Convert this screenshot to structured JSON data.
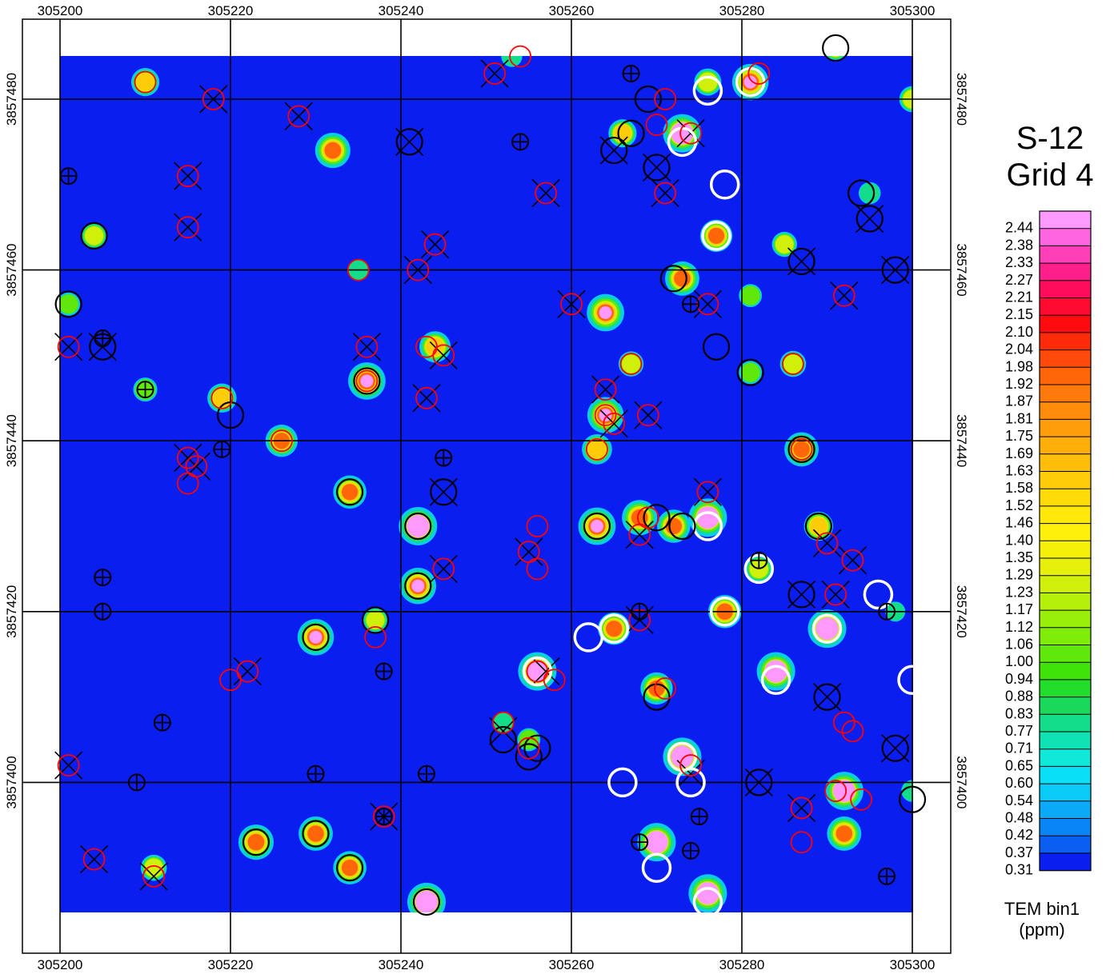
{
  "title": {
    "line1": "S-12",
    "line2": "Grid 4"
  },
  "legend": {
    "unit_line1": "TEM bin1",
    "unit_line2": "(ppm)",
    "labels": [
      "2.44",
      "2.38",
      "2.33",
      "2.27",
      "2.21",
      "2.15",
      "2.10",
      "2.04",
      "1.98",
      "1.92",
      "1.87",
      "1.81",
      "1.75",
      "1.69",
      "1.63",
      "1.58",
      "1.52",
      "1.46",
      "1.40",
      "1.35",
      "1.29",
      "1.23",
      "1.17",
      "1.12",
      "1.06",
      "1.00",
      "0.94",
      "0.88",
      "0.83",
      "0.77",
      "0.71",
      "0.65",
      "0.60",
      "0.54",
      "0.48",
      "0.42",
      "0.37",
      "0.31"
    ],
    "colors": [
      "#ff99ff",
      "#ff66e0",
      "#ff3fb8",
      "#ff1f8a",
      "#ff0c5c",
      "#ff0a2e",
      "#ff0a0f",
      "#ff2a0a",
      "#ff4a0a",
      "#ff660a",
      "#ff7a0a",
      "#ff8c0a",
      "#ff9e0a",
      "#ffae0a",
      "#ffbe0a",
      "#ffcc0a",
      "#ffdb0a",
      "#ffe80a",
      "#fff00a",
      "#f4f00a",
      "#e6f00a",
      "#cff00a",
      "#b5f00a",
      "#9aef0a",
      "#7fec0a",
      "#5fe80a",
      "#3fe30a",
      "#22dd2a",
      "#1ad85a",
      "#14dd8a",
      "#10e2b4",
      "#10e8da",
      "#0ae0f5",
      "#0acaf8",
      "#0aaaf8",
      "#0a85f5",
      "#0a5ff2",
      "#0a1ef0"
    ]
  },
  "axes": {
    "x_ticks": [
      "305200",
      "305220",
      "305240",
      "305260",
      "305280",
      "305300"
    ],
    "y_ticks": [
      "3857480",
      "3857460",
      "3857440",
      "3857420",
      "3857400"
    ],
    "xlim": [
      305196,
      305301
    ],
    "ylim": [
      3857383,
      3857484
    ]
  },
  "anomalies": [
    {
      "e": 305210,
      "n": 3857482,
      "v": 1.5
    },
    {
      "e": 305232,
      "n": 3857474,
      "v": 2.2
    },
    {
      "e": 305204,
      "n": 3857464,
      "v": 1.3
    },
    {
      "e": 305201,
      "n": 3857456,
      "v": 1.0
    },
    {
      "e": 305235,
      "n": 3857460,
      "v": 0.9
    },
    {
      "e": 305236,
      "n": 3857447,
      "v": 2.4
    },
    {
      "e": 305244,
      "n": 3857451,
      "v": 1.8
    },
    {
      "e": 305210,
      "n": 3857446,
      "v": 1.1
    },
    {
      "e": 305219,
      "n": 3857445,
      "v": 1.6
    },
    {
      "e": 305226,
      "n": 3857440,
      "v": 1.9
    },
    {
      "e": 305234,
      "n": 3857434,
      "v": 2.0
    },
    {
      "e": 305242,
      "n": 3857430,
      "v": 2.5
    },
    {
      "e": 305242,
      "n": 3857423,
      "v": 2.3
    },
    {
      "e": 305230,
      "n": 3857417,
      "v": 2.3
    },
    {
      "e": 305237,
      "n": 3857419,
      "v": 1.2
    },
    {
      "e": 305223,
      "n": 3857393,
      "v": 2.2
    },
    {
      "e": 305230,
      "n": 3857394,
      "v": 2.1
    },
    {
      "e": 305234,
      "n": 3857390,
      "v": 2.0
    },
    {
      "e": 305243,
      "n": 3857386,
      "v": 2.5
    },
    {
      "e": 305211,
      "n": 3857390,
      "v": 1.3
    },
    {
      "e": 305255,
      "n": 3857405,
      "v": 1.0
    },
    {
      "e": 305252,
      "n": 3857407,
      "v": 0.9
    },
    {
      "e": 305256,
      "n": 3857413,
      "v": 2.5
    },
    {
      "e": 305263,
      "n": 3857430,
      "v": 2.4
    },
    {
      "e": 305268,
      "n": 3857431,
      "v": 2.2
    },
    {
      "e": 305272,
      "n": 3857430,
      "v": 2.0
    },
    {
      "e": 305276,
      "n": 3857431,
      "v": 2.5
    },
    {
      "e": 305264,
      "n": 3857443,
      "v": 2.3
    },
    {
      "e": 305263,
      "n": 3857439,
      "v": 1.7
    },
    {
      "e": 305264,
      "n": 3857455,
      "v": 2.4
    },
    {
      "e": 305267,
      "n": 3857449,
      "v": 1.2
    },
    {
      "e": 305270,
      "n": 3857393,
      "v": 2.5
    },
    {
      "e": 305273,
      "n": 3857403,
      "v": 2.5
    },
    {
      "e": 305270,
      "n": 3857411,
      "v": 1.9
    },
    {
      "e": 305276,
      "n": 3857387,
      "v": 2.5
    },
    {
      "e": 305265,
      "n": 3857418,
      "v": 1.9
    },
    {
      "e": 305278,
      "n": 3857420,
      "v": 2.0
    },
    {
      "e": 305282,
      "n": 3857425,
      "v": 1.3
    },
    {
      "e": 305284,
      "n": 3857413,
      "v": 2.5
    },
    {
      "e": 305290,
      "n": 3857418,
      "v": 2.5
    },
    {
      "e": 305292,
      "n": 3857399,
      "v": 2.5
    },
    {
      "e": 305292,
      "n": 3857394,
      "v": 2.1
    },
    {
      "e": 305287,
      "n": 3857439,
      "v": 2.1
    },
    {
      "e": 305289,
      "n": 3857430,
      "v": 1.6
    },
    {
      "e": 305285,
      "n": 3857463,
      "v": 1.2
    },
    {
      "e": 305281,
      "n": 3857457,
      "v": 1.0
    },
    {
      "e": 305281,
      "n": 3857448,
      "v": 1.0
    },
    {
      "e": 305273,
      "n": 3857459,
      "v": 2.1
    },
    {
      "e": 305273,
      "n": 3857476,
      "v": 2.5
    },
    {
      "e": 305266,
      "n": 3857476,
      "v": 1.5
    },
    {
      "e": 305276,
      "n": 3857482,
      "v": 1.4
    },
    {
      "e": 305281,
      "n": 3857482,
      "v": 2.3
    },
    {
      "e": 305277,
      "n": 3857464,
      "v": 1.9
    },
    {
      "e": 305291,
      "n": 3857486,
      "v": 1.2
    },
    {
      "e": 305295,
      "n": 3857469,
      "v": 0.9
    },
    {
      "e": 305300,
      "n": 3857480,
      "v": 1.3
    },
    {
      "e": 305300,
      "n": 3857399,
      "v": 0.9
    },
    {
      "e": 305253,
      "n": 3857485,
      "v": 0.8
    },
    {
      "e": 305298,
      "n": 3857420,
      "v": 0.7
    },
    {
      "e": 305286,
      "n": 3857449,
      "v": 1.3
    }
  ],
  "markers": {
    "red": [
      {
        "e": 305210,
        "n": 3857482
      },
      {
        "e": 305218,
        "n": 3857480
      },
      {
        "e": 305228,
        "n": 3857478
      },
      {
        "e": 305215,
        "n": 3857471
      },
      {
        "e": 305215,
        "n": 3857465
      },
      {
        "e": 305251,
        "n": 3857483
      },
      {
        "e": 305254,
        "n": 3857485
      },
      {
        "e": 305257,
        "n": 3857469
      },
      {
        "e": 305271,
        "n": 3857480
      },
      {
        "e": 305270,
        "n": 3857477
      },
      {
        "e": 305271,
        "n": 3857469
      },
      {
        "e": 305274,
        "n": 3857476
      },
      {
        "e": 305282,
        "n": 3857483
      },
      {
        "e": 305244,
        "n": 3857463
      },
      {
        "e": 305242,
        "n": 3857460
      },
      {
        "e": 305235,
        "n": 3857460
      },
      {
        "e": 305201,
        "n": 3857451
      },
      {
        "e": 305236,
        "n": 3857451
      },
      {
        "e": 305243,
        "n": 3857451
      },
      {
        "e": 305245,
        "n": 3857450
      },
      {
        "e": 305236,
        "n": 3857447
      },
      {
        "e": 305243,
        "n": 3857445
      },
      {
        "e": 305219,
        "n": 3857445
      },
      {
        "e": 305260,
        "n": 3857456
      },
      {
        "e": 305276,
        "n": 3857456
      },
      {
        "e": 305292,
        "n": 3857457
      },
      {
        "e": 305286,
        "n": 3857449
      },
      {
        "e": 305267,
        "n": 3857449
      },
      {
        "e": 305264,
        "n": 3857446
      },
      {
        "e": 305264,
        "n": 3857443
      },
      {
        "e": 305265,
        "n": 3857442
      },
      {
        "e": 305269,
        "n": 3857443
      },
      {
        "e": 305263,
        "n": 3857439
      },
      {
        "e": 305215,
        "n": 3857438
      },
      {
        "e": 305216,
        "n": 3857437
      },
      {
        "e": 305215,
        "n": 3857435
      },
      {
        "e": 305226,
        "n": 3857440
      },
      {
        "e": 305287,
        "n": 3857439
      },
      {
        "e": 305276,
        "n": 3857434
      },
      {
        "e": 305256,
        "n": 3857430
      },
      {
        "e": 305255,
        "n": 3857427
      },
      {
        "e": 305256,
        "n": 3857425
      },
      {
        "e": 305245,
        "n": 3857425
      },
      {
        "e": 305268,
        "n": 3857429
      },
      {
        "e": 305269,
        "n": 3857431
      },
      {
        "e": 305290,
        "n": 3857428
      },
      {
        "e": 305293,
        "n": 3857426
      },
      {
        "e": 305291,
        "n": 3857422
      },
      {
        "e": 305268,
        "n": 3857419
      },
      {
        "e": 305237,
        "n": 3857417
      },
      {
        "e": 305220,
        "n": 3857412
      },
      {
        "e": 305222,
        "n": 3857413
      },
      {
        "e": 305256,
        "n": 3857413
      },
      {
        "e": 305258,
        "n": 3857412
      },
      {
        "e": 305271,
        "n": 3857411
      },
      {
        "e": 305252,
        "n": 3857407
      },
      {
        "e": 305255,
        "n": 3857404
      },
      {
        "e": 305292,
        "n": 3857407
      },
      {
        "e": 305293,
        "n": 3857406
      },
      {
        "e": 305201,
        "n": 3857402
      },
      {
        "e": 305238,
        "n": 3857396
      },
      {
        "e": 305274,
        "n": 3857402
      },
      {
        "e": 305287,
        "n": 3857397
      },
      {
        "e": 305287,
        "n": 3857393
      },
      {
        "e": 305291,
        "n": 3857399
      },
      {
        "e": 305294,
        "n": 3857398
      },
      {
        "e": 305211,
        "n": 3857389
      },
      {
        "e": 305204,
        "n": 3857391
      }
    ],
    "black": [
      {
        "e": 305241,
        "n": 3857475
      },
      {
        "e": 305270,
        "n": 3857472
      },
      {
        "e": 305265,
        "n": 3857474
      },
      {
        "e": 305269,
        "n": 3857480
      },
      {
        "e": 305267,
        "n": 3857476
      },
      {
        "e": 305295,
        "n": 3857466
      },
      {
        "e": 305294,
        "n": 3857469
      },
      {
        "e": 305204,
        "n": 3857464
      },
      {
        "e": 305272,
        "n": 3857459
      },
      {
        "e": 305287,
        "n": 3857461
      },
      {
        "e": 305298,
        "n": 3857460
      },
      {
        "e": 305201,
        "n": 3857456
      },
      {
        "e": 305205,
        "n": 3857451
      },
      {
        "e": 305277,
        "n": 3857451
      },
      {
        "e": 305281,
        "n": 3857448
      },
      {
        "e": 305236,
        "n": 3857447
      },
      {
        "e": 305220,
        "n": 3857443
      },
      {
        "e": 305287,
        "n": 3857439
      },
      {
        "e": 305245,
        "n": 3857434
      },
      {
        "e": 305234,
        "n": 3857434
      },
      {
        "e": 305242,
        "n": 3857430
      },
      {
        "e": 305263,
        "n": 3857430
      },
      {
        "e": 305270,
        "n": 3857431
      },
      {
        "e": 305273,
        "n": 3857430
      },
      {
        "e": 305289,
        "n": 3857430
      },
      {
        "e": 305242,
        "n": 3857423
      },
      {
        "e": 305287,
        "n": 3857422
      },
      {
        "e": 305230,
        "n": 3857417
      },
      {
        "e": 305237,
        "n": 3857419
      },
      {
        "e": 305290,
        "n": 3857410
      },
      {
        "e": 305270,
        "n": 3857410
      },
      {
        "e": 305252,
        "n": 3857405
      },
      {
        "e": 305255,
        "n": 3857403
      },
      {
        "e": 305256,
        "n": 3857404
      },
      {
        "e": 305298,
        "n": 3857404
      },
      {
        "e": 305282,
        "n": 3857400
      },
      {
        "e": 305300,
        "n": 3857398
      },
      {
        "e": 305223,
        "n": 3857393
      },
      {
        "e": 305230,
        "n": 3857394
      },
      {
        "e": 305234,
        "n": 3857390
      },
      {
        "e": 305243,
        "n": 3857386
      },
      {
        "e": 305291,
        "n": 3857486
      }
    ],
    "white": [
      {
        "e": 305276,
        "n": 3857481
      },
      {
        "e": 305281,
        "n": 3857482
      },
      {
        "e": 305273,
        "n": 3857475
      },
      {
        "e": 305278,
        "n": 3857470
      },
      {
        "e": 305277,
        "n": 3857464
      },
      {
        "e": 305276,
        "n": 3857430
      },
      {
        "e": 305282,
        "n": 3857425
      },
      {
        "e": 305296,
        "n": 3857422
      },
      {
        "e": 305278,
        "n": 3857420
      },
      {
        "e": 305265,
        "n": 3857418
      },
      {
        "e": 305262,
        "n": 3857417
      },
      {
        "e": 305290,
        "n": 3857418
      },
      {
        "e": 305256,
        "n": 3857413
      },
      {
        "e": 305284,
        "n": 3857412
      },
      {
        "e": 305300,
        "n": 3857412
      },
      {
        "e": 305274,
        "n": 3857400
      },
      {
        "e": 305273,
        "n": 3857403
      },
      {
        "e": 305266,
        "n": 3857400
      },
      {
        "e": 305270,
        "n": 3857390
      },
      {
        "e": 305276,
        "n": 3857386
      }
    ],
    "crosshair": [
      {
        "e": 305267,
        "n": 3857483
      },
      {
        "e": 305254,
        "n": 3857475
      },
      {
        "e": 305201,
        "n": 3857471
      },
      {
        "e": 305274,
        "n": 3857456
      },
      {
        "e": 305205,
        "n": 3857452
      },
      {
        "e": 305210,
        "n": 3857446
      },
      {
        "e": 305245,
        "n": 3857438
      },
      {
        "e": 305219,
        "n": 3857439
      },
      {
        "e": 305282,
        "n": 3857426
      },
      {
        "e": 305205,
        "n": 3857424
      },
      {
        "e": 305268,
        "n": 3857420
      },
      {
        "e": 305297,
        "n": 3857420
      },
      {
        "e": 305205,
        "n": 3857420
      },
      {
        "e": 305238,
        "n": 3857413
      },
      {
        "e": 305212,
        "n": 3857407
      },
      {
        "e": 305209,
        "n": 3857400
      },
      {
        "e": 305230,
        "n": 3857401
      },
      {
        "e": 305243,
        "n": 3857401
      },
      {
        "e": 305238,
        "n": 3857396
      },
      {
        "e": 305275,
        "n": 3857396
      },
      {
        "e": 305268,
        "n": 3857393
      },
      {
        "e": 305274,
        "n": 3857392
      },
      {
        "e": 305297,
        "n": 3857389
      }
    ],
    "crossed": [
      {
        "e": 305241,
        "n": 3857475
      },
      {
        "e": 305228,
        "n": 3857478
      },
      {
        "e": 305218,
        "n": 3857480
      },
      {
        "e": 305215,
        "n": 3857471
      },
      {
        "e": 305215,
        "n": 3857465
      },
      {
        "e": 305251,
        "n": 3857483
      },
      {
        "e": 305257,
        "n": 3857469
      },
      {
        "e": 305270,
        "n": 3857472
      },
      {
        "e": 305271,
        "n": 3857469
      },
      {
        "e": 305274,
        "n": 3857476
      },
      {
        "e": 305265,
        "n": 3857474
      },
      {
        "e": 305295,
        "n": 3857466
      },
      {
        "e": 305287,
        "n": 3857461
      },
      {
        "e": 305298,
        "n": 3857460
      },
      {
        "e": 305242,
        "n": 3857460
      },
      {
        "e": 305244,
        "n": 3857463
      },
      {
        "e": 305260,
        "n": 3857456
      },
      {
        "e": 305276,
        "n": 3857456
      },
      {
        "e": 305292,
        "n": 3857457
      },
      {
        "e": 305201,
        "n": 3857451
      },
      {
        "e": 305205,
        "n": 3857451
      },
      {
        "e": 305236,
        "n": 3857451
      },
      {
        "e": 305245,
        "n": 3857450
      },
      {
        "e": 305243,
        "n": 3857445
      },
      {
        "e": 305264,
        "n": 3857446
      },
      {
        "e": 305265,
        "n": 3857442
      },
      {
        "e": 305269,
        "n": 3857443
      },
      {
        "e": 305215,
        "n": 3857438
      },
      {
        "e": 305216,
        "n": 3857437
      },
      {
        "e": 305245,
        "n": 3857434
      },
      {
        "e": 305276,
        "n": 3857434
      },
      {
        "e": 305255,
        "n": 3857427
      },
      {
        "e": 305245,
        "n": 3857425
      },
      {
        "e": 305268,
        "n": 3857429
      },
      {
        "e": 305290,
        "n": 3857428
      },
      {
        "e": 305293,
        "n": 3857426
      },
      {
        "e": 305287,
        "n": 3857422
      },
      {
        "e": 305291,
        "n": 3857422
      },
      {
        "e": 305268,
        "n": 3857419
      },
      {
        "e": 305222,
        "n": 3857413
      },
      {
        "e": 305257,
        "n": 3857413
      },
      {
        "e": 305290,
        "n": 3857410
      },
      {
        "e": 305252,
        "n": 3857406
      },
      {
        "e": 305298,
        "n": 3857404
      },
      {
        "e": 305201,
        "n": 3857402
      },
      {
        "e": 305274,
        "n": 3857401
      },
      {
        "e": 305282,
        "n": 3857400
      },
      {
        "e": 305238,
        "n": 3857396
      },
      {
        "e": 305287,
        "n": 3857397
      },
      {
        "e": 305204,
        "n": 3857391
      },
      {
        "e": 305211,
        "n": 3857389
      }
    ]
  }
}
